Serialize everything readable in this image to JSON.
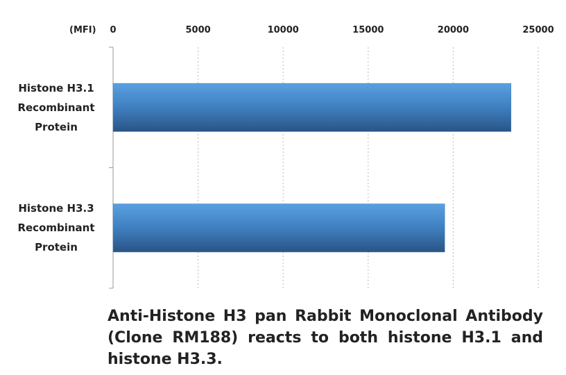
{
  "chart_data": {
    "type": "bar",
    "orientation": "horizontal",
    "x_label": "(MFI)",
    "categories": [
      "Histone H3.1\nRecombinant\nProtein",
      "Histone H3.3\nRecombinant\nProtein"
    ],
    "values": [
      23400,
      19500
    ],
    "color": "#3f7fc0",
    "xlim": [
      0,
      25000
    ],
    "xticks": [
      0,
      5000,
      10000,
      15000,
      20000,
      25000
    ],
    "grid": true,
    "caption": "Anti-Histone H3 pan Rabbit Monoclonal Antibody (Clone RM188) reacts to both histone H3.1 and histone H3.3."
  }
}
